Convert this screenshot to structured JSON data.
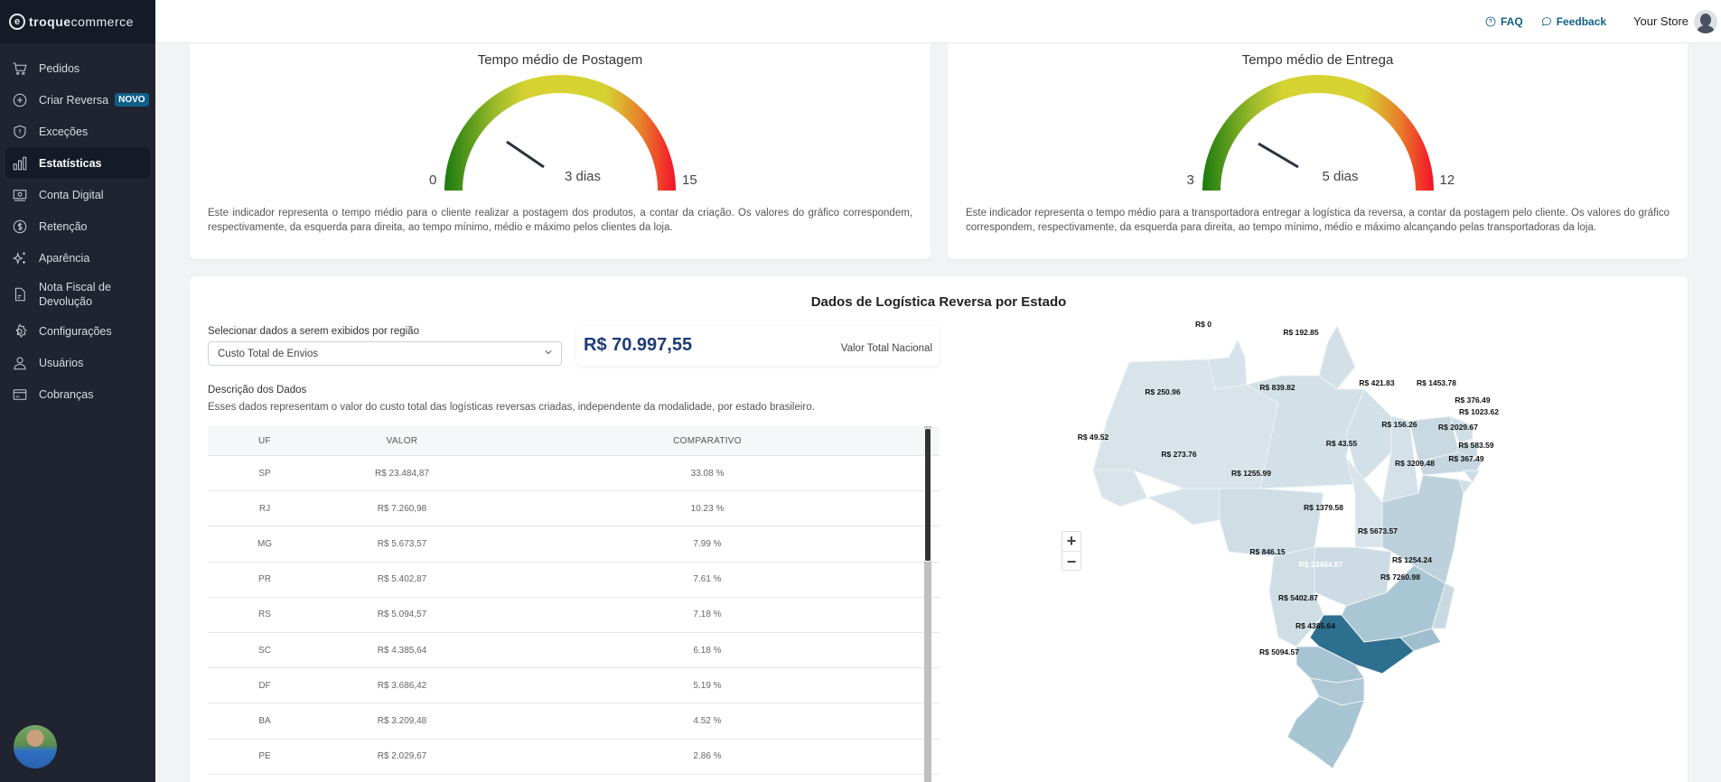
{
  "app": {
    "logo_mark": "e",
    "logo_bold": "troque",
    "logo_light": "commerce"
  },
  "sidebar": {
    "items": [
      {
        "label": "Pedidos",
        "icon": "cart-icon"
      },
      {
        "label": "Criar Reversa",
        "icon": "plus-circle-icon",
        "badge": "NOVO"
      },
      {
        "label": "Exceções",
        "icon": "shield-alert-icon"
      },
      {
        "label": "Estatísticas",
        "icon": "bar-chart-icon",
        "active": true
      },
      {
        "label": "Conta Digital",
        "icon": "cash-icon"
      },
      {
        "label": "Retenção",
        "icon": "dollar-circle-icon"
      },
      {
        "label": "Aparência",
        "icon": "sparkles-icon"
      },
      {
        "label": "Nota Fiscal de Devolução",
        "label_line1": "Nota Fiscal de",
        "label_line2": "Devolução",
        "icon": "document-icon"
      },
      {
        "label": "Configurações",
        "icon": "gear-icon"
      },
      {
        "label": "Usuários",
        "icon": "user-icon"
      },
      {
        "label": "Cobranças",
        "icon": "credit-card-icon"
      }
    ]
  },
  "topbar": {
    "faq": "FAQ",
    "feedback": "Feedback",
    "store": "Your Store"
  },
  "gauges": [
    {
      "title": "Tempo médio de Postagem",
      "min": "0",
      "max": "15",
      "value": "3 dias",
      "description": "Este indicador representa o tempo médio para o cliente realizar a postagem dos produtos, a contar da criação. Os valores do gráfico correspondem, respectivamente, da esquerda para direita, ao tempo mínimo, médio e máximo pelos clientes da loja."
    },
    {
      "title": "Tempo médio de Entrega",
      "min": "3",
      "max": "12",
      "value": "5 dias",
      "description": "Este indicador representa o tempo médio para a transportadora entregar a logística da reversa, a contar da postagem pelo cliente. Os valores do gráfico correspondem, respectivamente, da esquerda para direita, ao tempo mínimo, médio e máximo alcançando pelas transportadoras da loja."
    }
  ],
  "regional": {
    "title": "Dados de Logística Reversa por Estado",
    "select_label": "Selecionar dados a serem exibidos por região",
    "select_value": "Custo Total de Envios",
    "total_value": "R$ 70.997,55",
    "total_label": "Valor Total Nacional",
    "desc_title": "Descrição dos Dados",
    "desc_text": "Esses dados representam o valor do custo total das logísticas reversas criadas, independente da modalidade, por estado brasileiro.",
    "table": {
      "headers": [
        "UF",
        "VALOR",
        "COMPARATIVO"
      ],
      "rows": [
        {
          "uf": "SP",
          "valor": "R$ 23.484,87",
          "comparativo": "33.08 %"
        },
        {
          "uf": "RJ",
          "valor": "R$ 7.260,98",
          "comparativo": "10.23 %"
        },
        {
          "uf": "MG",
          "valor": "R$ 5.673,57",
          "comparativo": "7.99 %"
        },
        {
          "uf": "PR",
          "valor": "R$ 5.402,87",
          "comparativo": "7.61 %"
        },
        {
          "uf": "RS",
          "valor": "R$ 5.094,57",
          "comparativo": "7.18 %"
        },
        {
          "uf": "SC",
          "valor": "R$ 4.385,64",
          "comparativo": "6.18 %"
        },
        {
          "uf": "DF",
          "valor": "R$ 3.686,42",
          "comparativo": "5.19 %"
        },
        {
          "uf": "BA",
          "valor": "R$ 3.209,48",
          "comparativo": "4.52 %"
        },
        {
          "uf": "PE",
          "valor": "R$ 2.029,67",
          "comparativo": "2.86 %"
        }
      ]
    },
    "map": {
      "zoom_in": "+",
      "zoom_out": "−",
      "labels": {
        "RR": "R$ 0",
        "AP": "R$ 192.85",
        "AM": "R$ 250.96",
        "PA": "R$ 839.82",
        "AC": "R$ 49.52",
        "RO": "R$ 273.76",
        "MT": "R$ 1255.99",
        "MA": "R$ 421.83",
        "CE": "R$ 1453.78",
        "RN": "R$ 376.49",
        "PB": "R$ 1023.62",
        "PI": "R$ 156.26",
        "PE": "R$ 2029.67",
        "TO": "R$ 43.55",
        "AL": "R$ 583.59",
        "SE": "R$ 367.49",
        "BA": "R$ 3209.48",
        "GO": "R$ 1379.58",
        "MG": "R$ 5673.57",
        "MS": "R$ 846.15",
        "SP": "R$ 23484.87",
        "ES": "R$ 1254.24",
        "RJ": "R$ 7260.98",
        "PR": "R$ 5402.87",
        "SC": "R$ 4385.64",
        "RS": "R$ 5094.57"
      }
    }
  },
  "colors": {
    "sidebar_bg": "#1f2430",
    "accent": "#0f5f86",
    "total_value": "#1d3c78",
    "map_max": "#2c6f8e",
    "map_min": "#d8e4ea"
  }
}
